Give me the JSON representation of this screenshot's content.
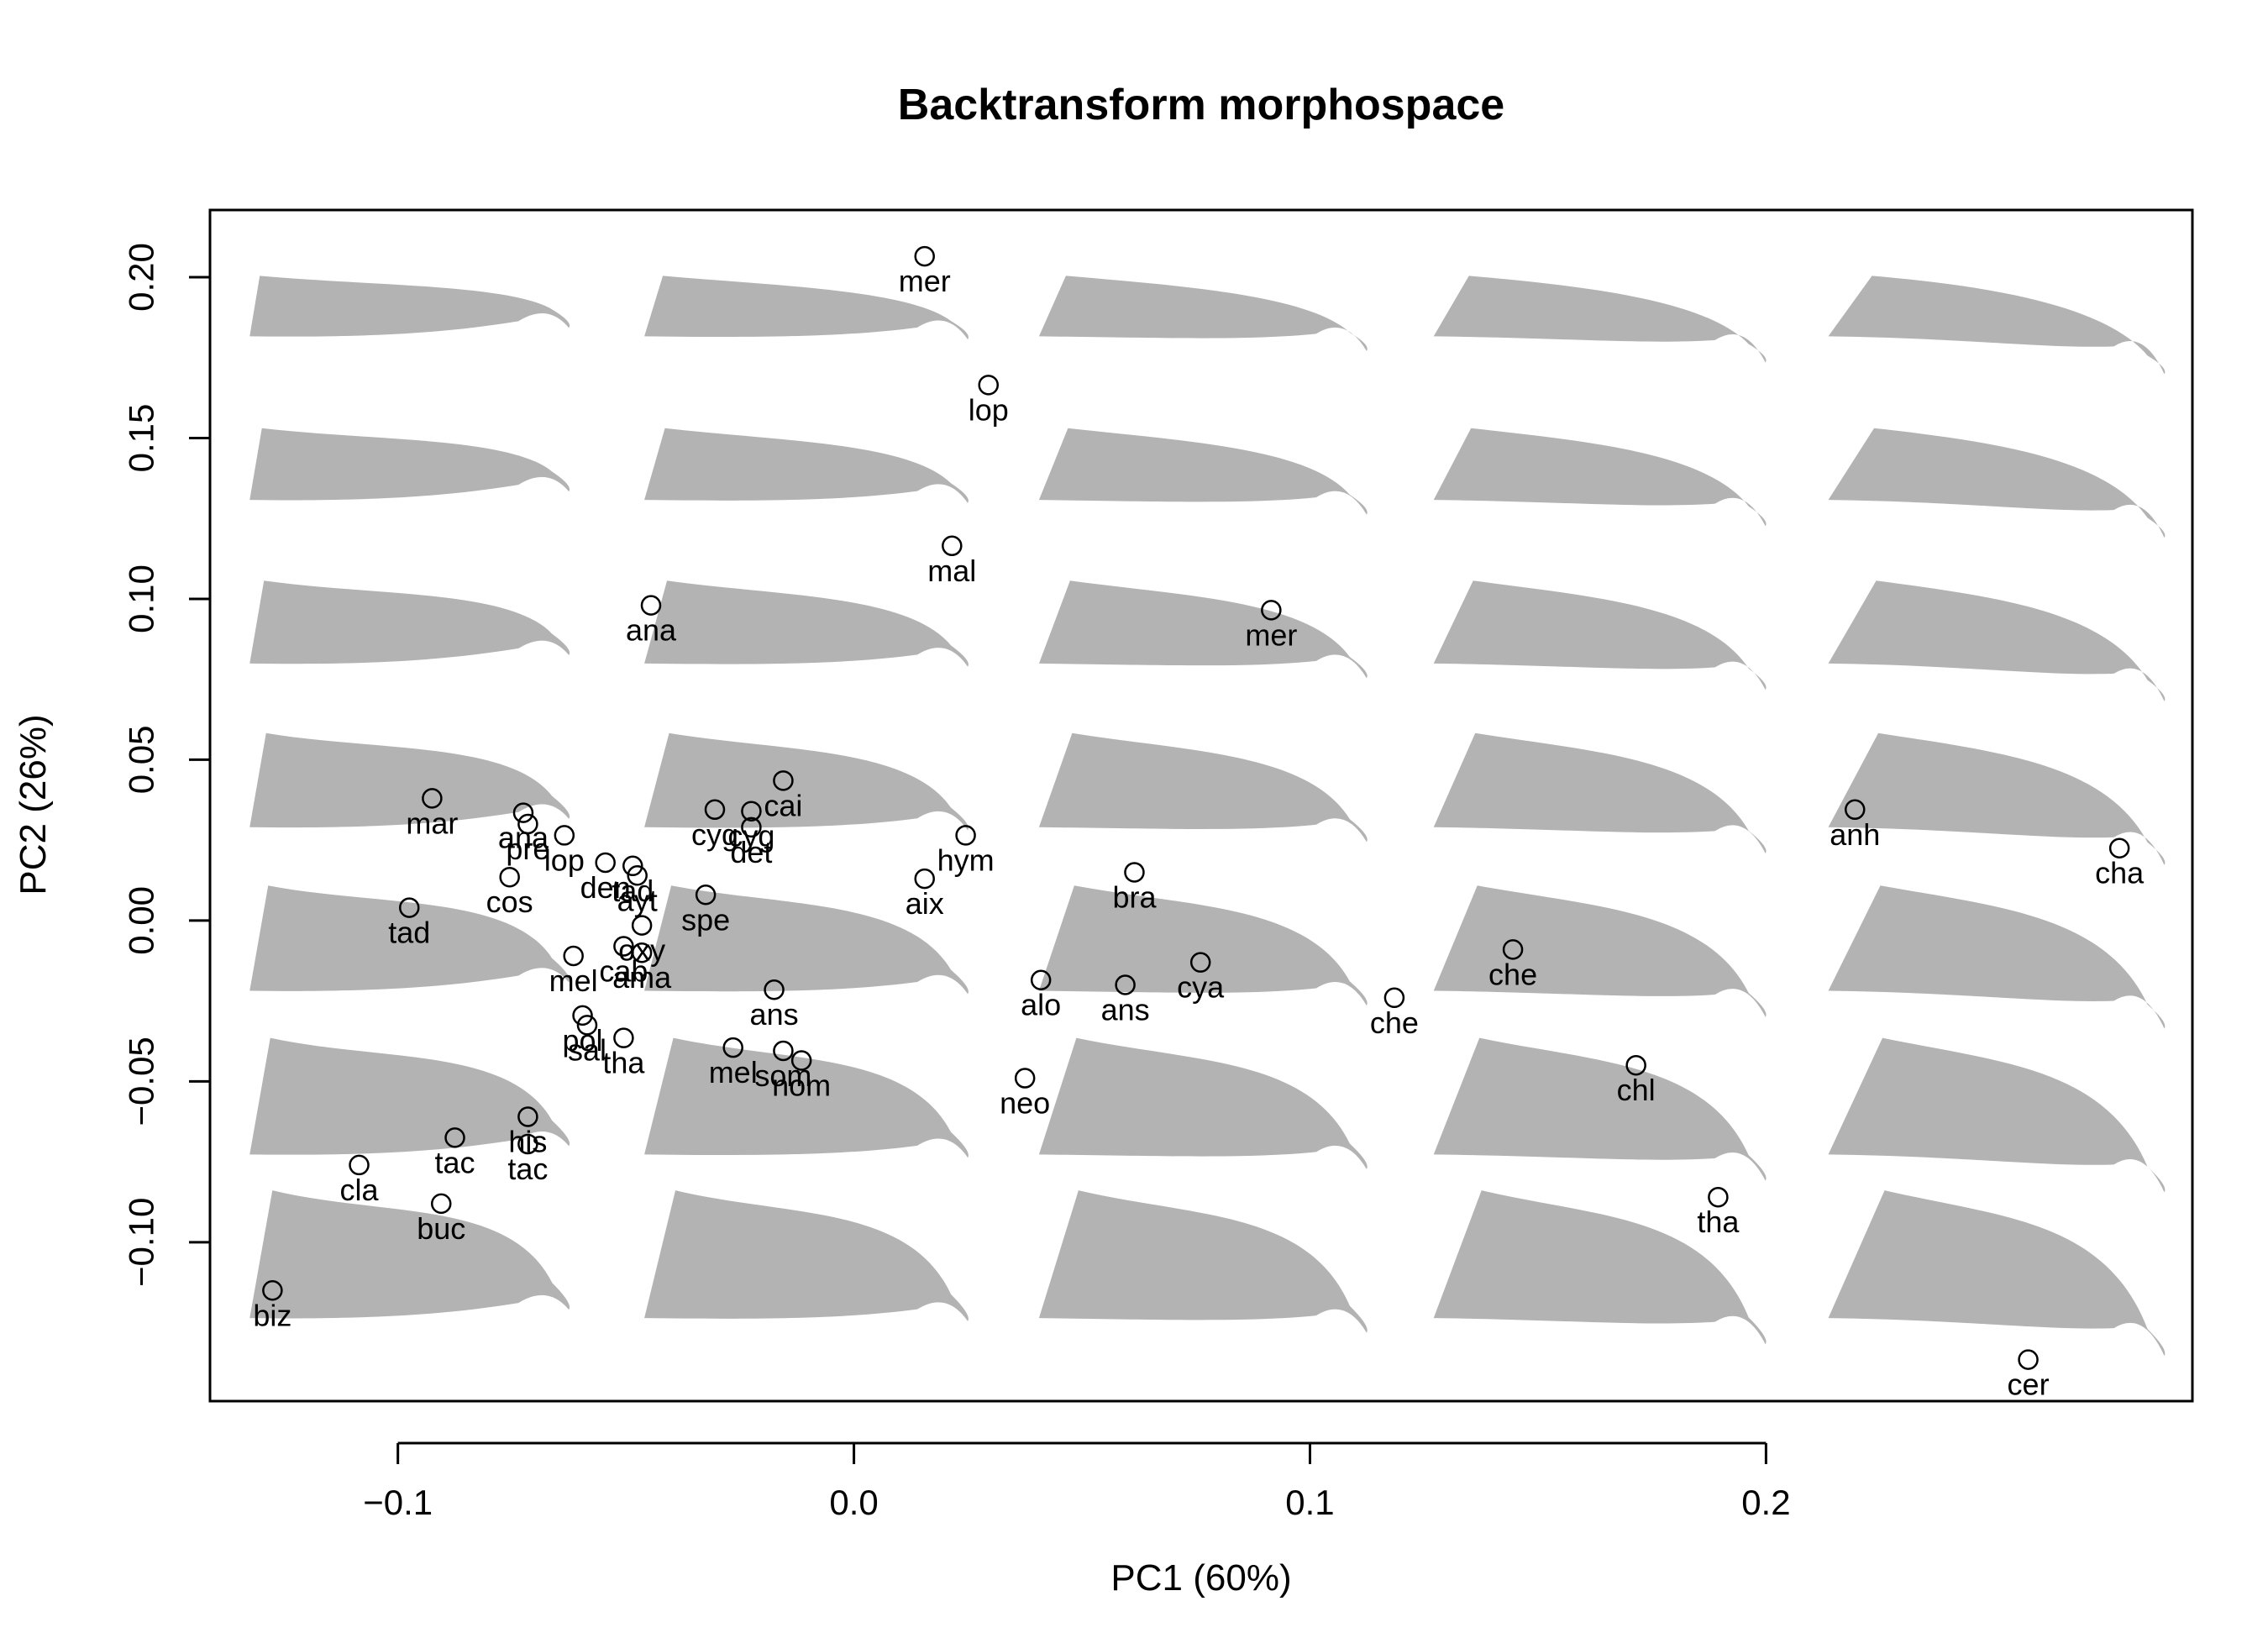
{
  "chart_data": {
    "type": "scatter",
    "title": "Backtransform morphospace",
    "xlabel": "PC1 (60%)",
    "ylabel": "PC2 (26%)",
    "xlim": [
      -0.1412,
      0.2935
    ],
    "ylim": [
      -0.1494,
      0.2209
    ],
    "x_ticks": [
      -0.1,
      0.0,
      0.1,
      0.2
    ],
    "x_tick_labels": [
      "−0.1",
      "0.0",
      "0.1",
      "0.2"
    ],
    "y_ticks": [
      -0.1,
      -0.05,
      0.0,
      0.05,
      0.1,
      0.15,
      0.2
    ],
    "y_tick_labels": [
      "−0.10",
      "−0.05",
      "0.00",
      "0.05",
      "0.10",
      "0.15",
      "0.20"
    ],
    "grid": false,
    "legend": "none",
    "background_shape_color": "#b3b3b3",
    "marker": "open-circle",
    "background_shapes": {
      "columns_pc1": [
        -0.0975,
        -0.0105,
        0.0765,
        0.1635,
        0.2505
      ],
      "rows_pc2": [
        0.19,
        0.14,
        0.09,
        0.04,
        -0.01,
        -0.06,
        -0.11
      ]
    },
    "points": [
      {
        "label": "mer",
        "x": 0.0155,
        "y": 0.2065
      },
      {
        "label": "lop",
        "x": 0.0295,
        "y": 0.1665
      },
      {
        "label": "mal",
        "x": 0.0215,
        "y": 0.1165
      },
      {
        "label": "ana",
        "x": -0.0445,
        "y": 0.098
      },
      {
        "label": "mer",
        "x": 0.0915,
        "y": 0.0965
      },
      {
        "label": "mar",
        "x": -0.0925,
        "y": 0.038
      },
      {
        "label": "ana",
        "x": -0.0725,
        "y": 0.0335
      },
      {
        "label": "pre",
        "x": -0.0715,
        "y": 0.03
      },
      {
        "label": "lop",
        "x": -0.0635,
        "y": 0.0265
      },
      {
        "label": "cos",
        "x": -0.0755,
        "y": 0.0135
      },
      {
        "label": "den",
        "x": -0.0545,
        "y": 0.018
      },
      {
        "label": "tad",
        "x": -0.0485,
        "y": 0.017
      },
      {
        "label": "ayt",
        "x": -0.0475,
        "y": 0.014
      },
      {
        "label": "tad",
        "x": -0.0975,
        "y": 0.004
      },
      {
        "label": "cai",
        "x": -0.0155,
        "y": 0.0435
      },
      {
        "label": "cyg",
        "x": -0.0305,
        "y": 0.0345
      },
      {
        "label": "cyg",
        "x": -0.0225,
        "y": 0.034
      },
      {
        "label": "det",
        "x": -0.0225,
        "y": 0.029
      },
      {
        "label": "hym",
        "x": 0.0245,
        "y": 0.0265
      },
      {
        "label": "aix",
        "x": 0.0155,
        "y": 0.013
      },
      {
        "label": "spe",
        "x": -0.0325,
        "y": 0.008
      },
      {
        "label": "bra",
        "x": 0.0615,
        "y": 0.015
      },
      {
        "label": "anh",
        "x": 0.2195,
        "y": 0.0345
      },
      {
        "label": "cha",
        "x": 0.2775,
        "y": 0.0225
      },
      {
        "label": "mel",
        "x": -0.0615,
        "y": -0.011
      },
      {
        "label": "cab",
        "x": -0.0505,
        "y": -0.008
      },
      {
        "label": "oxy",
        "x": -0.0465,
        "y": -0.0015
      },
      {
        "label": "ama",
        "x": -0.0465,
        "y": -0.01
      },
      {
        "label": "ans",
        "x": -0.0175,
        "y": -0.0215
      },
      {
        "label": "alo",
        "x": 0.041,
        "y": -0.0185
      },
      {
        "label": "ans",
        "x": 0.0595,
        "y": -0.02
      },
      {
        "label": "cya",
        "x": 0.076,
        "y": -0.013
      },
      {
        "label": "che",
        "x": 0.1185,
        "y": -0.024
      },
      {
        "label": "che",
        "x": 0.1445,
        "y": -0.009
      },
      {
        "label": "pol",
        "x": -0.0595,
        "y": -0.0295
      },
      {
        "label": "sal",
        "x": -0.0585,
        "y": -0.0325
      },
      {
        "label": "tha",
        "x": -0.0505,
        "y": -0.0365
      },
      {
        "label": "mel",
        "x": -0.0265,
        "y": -0.0395
      },
      {
        "label": "som",
        "x": -0.0155,
        "y": -0.0405
      },
      {
        "label": "nom",
        "x": -0.0115,
        "y": -0.0435
      },
      {
        "label": "neo",
        "x": 0.0375,
        "y": -0.049
      },
      {
        "label": "chl",
        "x": 0.1715,
        "y": -0.045
      },
      {
        "label": "his",
        "x": -0.0715,
        "y": -0.061
      },
      {
        "label": "tac",
        "x": -0.0875,
        "y": -0.0675
      },
      {
        "label": "tac",
        "x": -0.0715,
        "y": -0.0695
      },
      {
        "label": "cla",
        "x": -0.1085,
        "y": -0.076
      },
      {
        "label": "buc",
        "x": -0.0905,
        "y": -0.088
      },
      {
        "label": "tha",
        "x": 0.1895,
        "y": -0.086
      },
      {
        "label": "biz",
        "x": -0.1275,
        "y": -0.115
      },
      {
        "label": "cer",
        "x": 0.2575,
        "y": -0.1365
      }
    ]
  }
}
